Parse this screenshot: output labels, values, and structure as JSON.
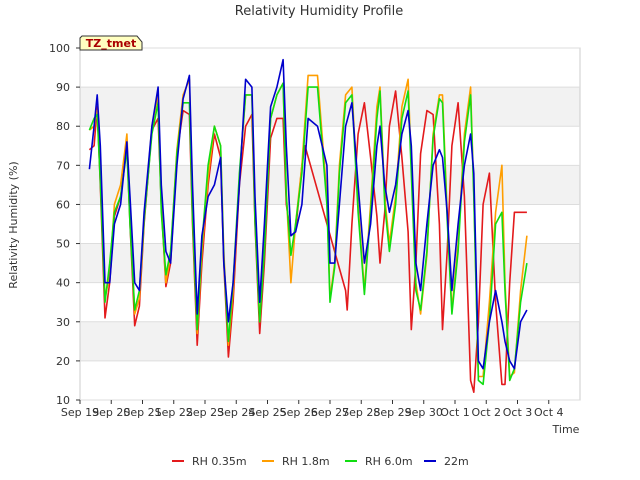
{
  "chart_data": {
    "type": "line",
    "title": "Relativity Humidity Profile",
    "xlabel": "Time",
    "ylabel": "Relativity Humidity (%)",
    "ylim": [
      10,
      100
    ],
    "yticks": [
      10,
      20,
      30,
      40,
      50,
      60,
      70,
      80,
      90,
      100
    ],
    "xlim": [
      0,
      16
    ],
    "xtick_labels": [
      "Sep 19",
      "Sep 20",
      "Sep 21",
      "Sep 22",
      "Sep 23",
      "Sep 24",
      "Sep 25",
      "Sep 26",
      "Sep 27",
      "Sep 28",
      "Sep 29",
      "Sep 30",
      "Oct 1",
      "Oct 2",
      "Oct 3",
      "Oct 4"
    ],
    "xtick_positions": [
      0,
      1,
      2,
      3,
      4,
      5,
      6,
      7,
      8,
      9,
      10,
      11,
      12,
      13,
      14,
      15
    ],
    "background_bands": [
      [
        20,
        30
      ],
      [
        40,
        50
      ],
      [
        60,
        70
      ],
      [
        80,
        90
      ]
    ],
    "tag_label": "TZ_tmet",
    "x_units": "days since Sep 19 00:00",
    "series": [
      {
        "name": "RH 0.35m",
        "color": "#e31a1c",
        "x": [
          0.3,
          0.45,
          0.55,
          0.65,
          0.8,
          0.95,
          1.1,
          1.3,
          1.5,
          1.6,
          1.75,
          1.9,
          2.05,
          2.3,
          2.5,
          2.6,
          2.75,
          2.9,
          3.1,
          3.3,
          3.5,
          3.6,
          3.75,
          3.9,
          4.1,
          4.3,
          4.5,
          4.6,
          4.75,
          4.9,
          5.1,
          5.3,
          5.5,
          5.6,
          5.75,
          5.9,
          6.1,
          6.3,
          6.5,
          6.6,
          6.75,
          6.9,
          7.1,
          7.2,
          8.5,
          8.55,
          8.7,
          8.9,
          9.1,
          9.3,
          9.5,
          9.6,
          9.75,
          9.9,
          10.1,
          10.3,
          10.5,
          10.6,
          10.75,
          10.9,
          11.1,
          11.3,
          11.5,
          11.6,
          11.75,
          11.9,
          12.1,
          12.3,
          12.5,
          12.6,
          12.75,
          12.9,
          13.1,
          13.3,
          13.5,
          13.6,
          13.75,
          13.9,
          14.1,
          14.3
        ],
        "y": [
          74,
          75,
          85,
          65,
          31,
          40,
          57,
          62,
          75,
          55,
          29,
          34,
          55,
          79,
          82,
          60,
          39,
          45,
          73,
          84,
          83,
          55,
          24,
          45,
          65,
          78,
          72,
          45,
          21,
          35,
          65,
          80,
          83,
          55,
          27,
          45,
          77,
          82,
          82,
          60,
          52,
          53,
          70,
          75,
          38,
          33,
          55,
          78,
          86,
          72,
          57,
          45,
          58,
          80,
          89,
          72,
          53,
          28,
          45,
          73,
          84,
          83,
          55,
          28,
          48,
          75,
          86,
          62,
          15,
          12,
          30,
          60,
          68,
          35,
          14,
          14,
          40,
          58,
          58,
          58
        ]
      },
      {
        "name": "RH 1.8m",
        "color": "#ff9e00",
        "x": [
          0.3,
          0.45,
          0.55,
          0.65,
          0.8,
          0.95,
          1.1,
          1.3,
          1.5,
          1.6,
          1.75,
          1.9,
          2.05,
          2.3,
          2.5,
          2.6,
          2.75,
          2.9,
          3.1,
          3.3,
          3.5,
          3.6,
          3.75,
          3.9,
          4.1,
          4.3,
          4.5,
          4.6,
          4.75,
          4.9,
          5.1,
          5.3,
          5.5,
          5.6,
          5.75,
          5.9,
          6.1,
          6.3,
          6.5,
          6.6,
          6.75,
          6.9,
          7.1,
          7.3,
          7.6,
          7.9,
          8.0,
          8.15,
          8.3,
          8.5,
          8.7,
          8.9,
          9.1,
          9.3,
          9.5,
          9.6,
          9.75,
          9.9,
          10.1,
          10.3,
          10.5,
          10.6,
          10.75,
          10.9,
          11.1,
          11.3,
          11.5,
          11.6,
          11.75,
          11.9,
          12.1,
          12.3,
          12.5,
          12.6,
          12.75,
          12.9,
          13.1,
          13.3,
          13.5,
          13.6,
          13.75,
          13.9,
          14.1,
          14.3
        ],
        "y": [
          79,
          80,
          84,
          68,
          36,
          42,
          60,
          65,
          78,
          58,
          32,
          36,
          56,
          80,
          88,
          60,
          40,
          47,
          74,
          88,
          92,
          58,
          27,
          48,
          67,
          80,
          75,
          48,
          24,
          38,
          67,
          88,
          88,
          58,
          30,
          50,
          82,
          88,
          91,
          63,
          40,
          55,
          70,
          93,
          93,
          62,
          36,
          45,
          70,
          88,
          90,
          60,
          38,
          60,
          85,
          90,
          62,
          50,
          62,
          85,
          92,
          70,
          40,
          32,
          47,
          78,
          88,
          88,
          58,
          33,
          50,
          78,
          90,
          63,
          16,
          16,
          35,
          58,
          70,
          40,
          16,
          17,
          38,
          52
        ]
      },
      {
        "name": "RH 6.0m",
        "color": "#11dd11",
        "x": [
          0.3,
          0.45,
          0.55,
          0.65,
          0.8,
          0.95,
          1.1,
          1.3,
          1.5,
          1.6,
          1.75,
          1.9,
          2.05,
          2.3,
          2.5,
          2.6,
          2.75,
          2.9,
          3.1,
          3.3,
          3.5,
          3.6,
          3.75,
          3.9,
          4.1,
          4.3,
          4.5,
          4.6,
          4.75,
          4.9,
          5.1,
          5.3,
          5.5,
          5.6,
          5.75,
          5.9,
          6.1,
          6.3,
          6.5,
          6.6,
          6.75,
          6.9,
          7.1,
          7.3,
          7.6,
          7.9,
          8.0,
          8.15,
          8.3,
          8.5,
          8.7,
          8.9,
          9.1,
          9.3,
          9.5,
          9.6,
          9.75,
          9.9,
          10.1,
          10.3,
          10.5,
          10.6,
          10.75,
          10.9,
          11.1,
          11.3,
          11.5,
          11.6,
          11.75,
          11.9,
          12.1,
          12.3,
          12.5,
          12.6,
          12.75,
          12.9,
          13.1,
          13.3,
          13.5,
          13.6,
          13.75,
          13.9,
          14.1,
          14.3
        ],
        "y": [
          79,
          82,
          83,
          66,
          35,
          45,
          58,
          62,
          74,
          55,
          33,
          38,
          56,
          78,
          86,
          58,
          42,
          48,
          73,
          86,
          86,
          57,
          28,
          50,
          70,
          80,
          75,
          46,
          25,
          40,
          68,
          88,
          88,
          56,
          30,
          48,
          82,
          88,
          91,
          62,
          47,
          55,
          68,
          90,
          90,
          60,
          35,
          44,
          68,
          86,
          88,
          58,
          37,
          58,
          82,
          89,
          60,
          48,
          60,
          82,
          89,
          68,
          38,
          33,
          48,
          77,
          87,
          86,
          56,
          32,
          48,
          76,
          88,
          62,
          15,
          14,
          30,
          55,
          58,
          38,
          15,
          18,
          35,
          45
        ]
      },
      {
        "name": "22m",
        "color": "#0000cc",
        "x": [
          0.3,
          0.45,
          0.55,
          0.65,
          0.8,
          0.95,
          1.1,
          1.3,
          1.5,
          1.6,
          1.75,
          1.9,
          2.05,
          2.3,
          2.5,
          2.6,
          2.75,
          2.9,
          3.1,
          3.3,
          3.5,
          3.6,
          3.75,
          3.9,
          4.1,
          4.3,
          4.5,
          4.6,
          4.75,
          4.9,
          5.1,
          5.3,
          5.5,
          5.6,
          5.75,
          5.9,
          6.1,
          6.3,
          6.5,
          6.6,
          6.75,
          6.9,
          7.1,
          7.3,
          7.6,
          7.9,
          8.0,
          8.15,
          8.3,
          8.5,
          8.7,
          8.9,
          9.1,
          9.3,
          9.5,
          9.6,
          9.75,
          9.9,
          10.1,
          10.3,
          10.5,
          10.6,
          10.75,
          10.9,
          11.1,
          11.3,
          11.5,
          11.6,
          11.75,
          11.9,
          12.1,
          12.3,
          12.5,
          12.6,
          12.75,
          12.9,
          13.1,
          13.3,
          13.5,
          13.6,
          13.75,
          13.9,
          14.1,
          14.3
        ],
        "y": [
          69,
          80,
          88,
          75,
          40,
          40,
          55,
          60,
          76,
          62,
          40,
          38,
          58,
          80,
          90,
          65,
          48,
          45,
          70,
          87,
          93,
          65,
          32,
          52,
          62,
          65,
          72,
          45,
          30,
          40,
          65,
          92,
          90,
          62,
          35,
          55,
          85,
          90,
          97,
          75,
          52,
          53,
          60,
          82,
          80,
          70,
          45,
          45,
          60,
          80,
          86,
          65,
          45,
          55,
          75,
          80,
          65,
          58,
          65,
          78,
          84,
          75,
          45,
          38,
          55,
          70,
          74,
          72,
          58,
          38,
          55,
          70,
          78,
          68,
          20,
          18,
          30,
          38,
          30,
          25,
          20,
          18,
          30,
          33
        ]
      }
    ]
  }
}
